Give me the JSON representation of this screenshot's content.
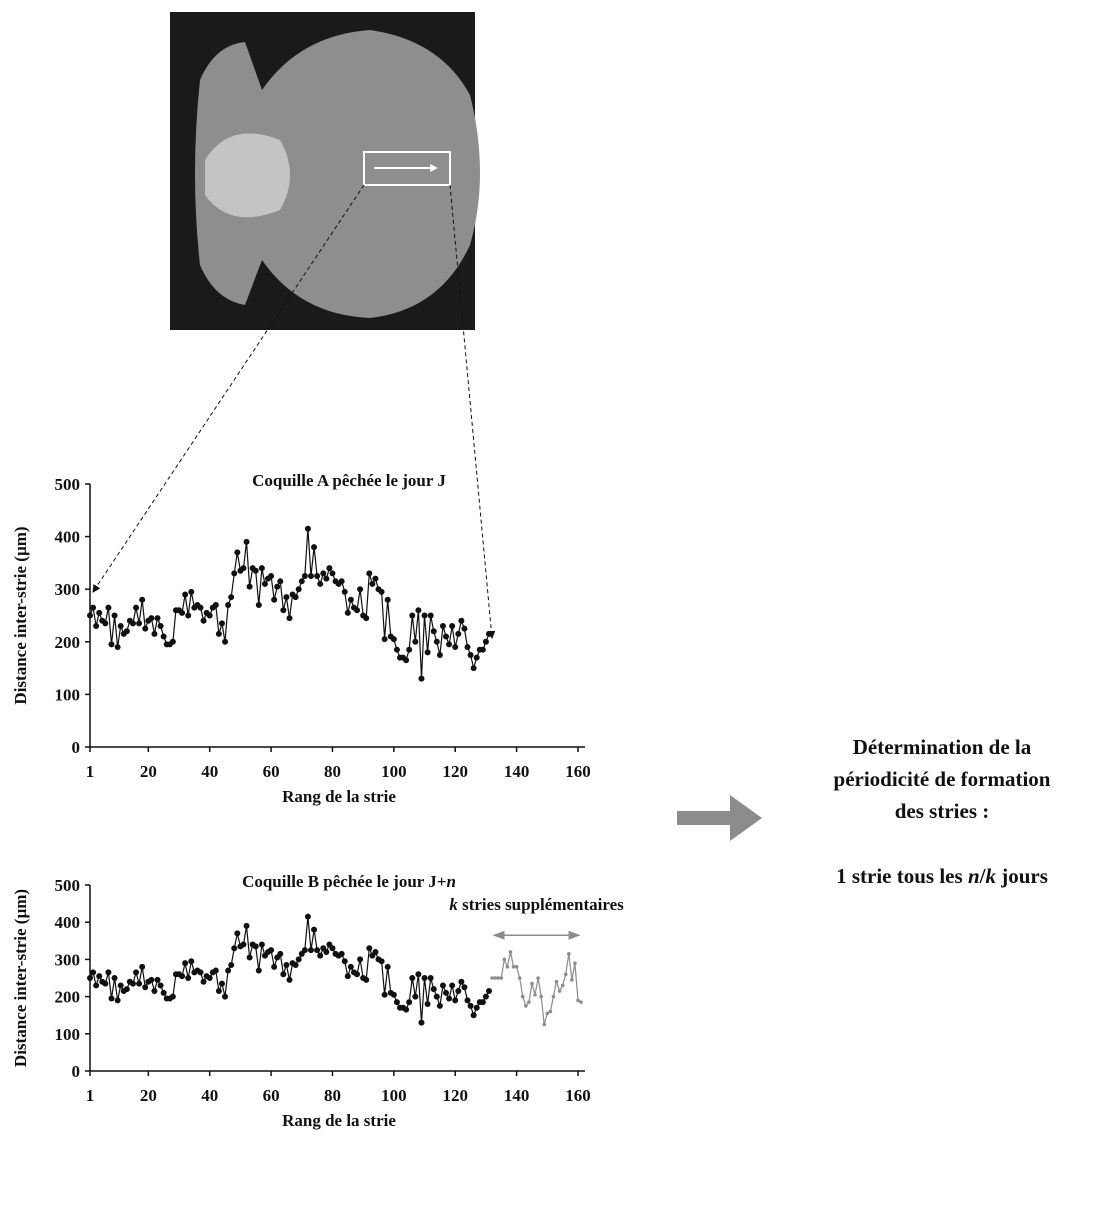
{
  "chart_data": [
    {
      "type": "line",
      "title": [
        "Coquille A pêchée le jour J"
      ],
      "x_label": "Rang de la strie",
      "y_label": "Distance inter-strie (µm)",
      "xlim": [
        1,
        160
      ],
      "xticks": [
        1,
        20,
        40,
        60,
        80,
        100,
        120,
        140,
        160
      ],
      "ylim": [
        0,
        500
      ],
      "yticks": [
        0,
        100,
        200,
        300,
        400,
        500
      ],
      "series": [
        {
          "color": "#111111",
          "x": [
            1,
            2,
            3,
            4,
            5,
            6,
            7,
            8,
            9,
            10,
            11,
            12,
            13,
            14,
            15,
            16,
            17,
            18,
            19,
            20,
            21,
            22,
            23,
            24,
            25,
            26,
            27,
            28,
            29,
            30,
            31,
            32,
            33,
            34,
            35,
            36,
            37,
            38,
            39,
            40,
            41,
            42,
            43,
            44,
            45,
            46,
            47,
            48,
            49,
            50,
            51,
            52,
            53,
            54,
            55,
            56,
            57,
            58,
            59,
            60,
            61,
            62,
            63,
            64,
            65,
            66,
            67,
            68,
            69,
            70,
            71,
            72,
            73,
            74,
            75,
            76,
            77,
            78,
            79,
            80,
            81,
            82,
            83,
            84,
            85,
            86,
            87,
            88,
            89,
            90,
            91,
            92,
            93,
            94,
            95,
            96,
            97,
            98,
            99,
            100,
            101,
            102,
            103,
            104,
            105,
            106,
            107,
            108,
            109,
            110,
            111,
            112,
            113,
            114,
            115,
            116,
            117,
            118,
            119,
            120,
            121,
            122,
            123,
            124,
            125,
            126,
            127,
            128,
            129,
            130,
            131
          ],
          "values": [
            250,
            265,
            230,
            255,
            240,
            235,
            265,
            195,
            250,
            190,
            230,
            215,
            220,
            240,
            235,
            265,
            235,
            280,
            225,
            240,
            245,
            215,
            245,
            230,
            210,
            195,
            195,
            200,
            260,
            260,
            255,
            290,
            250,
            295,
            265,
            270,
            265,
            240,
            255,
            250,
            265,
            270,
            215,
            235,
            200,
            270,
            285,
            330,
            370,
            335,
            340,
            390,
            305,
            340,
            335,
            270,
            340,
            310,
            320,
            325,
            280,
            305,
            315,
            260,
            285,
            245,
            290,
            285,
            300,
            315,
            325,
            415,
            325,
            380,
            325,
            310,
            330,
            320,
            340,
            330,
            315,
            310,
            315,
            295,
            255,
            280,
            265,
            260,
            300,
            250,
            245,
            330,
            310,
            320,
            300,
            295,
            205,
            280,
            210,
            205,
            185,
            170,
            170,
            165,
            185,
            250,
            200,
            260,
            130,
            250,
            180,
            250,
            220,
            200,
            175,
            230,
            210,
            195,
            230,
            190,
            215,
            240,
            225,
            190,
            175,
            150,
            170,
            185,
            185,
            200,
            215
          ]
        }
      ]
    },
    {
      "type": "line",
      "title": [
        "Coquille B pêchée le jour J+",
        "n"
      ],
      "x_label": "Rang de la strie",
      "y_label": "Distance inter-strie (µm)",
      "xlim": [
        1,
        160
      ],
      "xticks": [
        1,
        20,
        40,
        60,
        80,
        100,
        120,
        140,
        160
      ],
      "ylim": [
        0,
        500
      ],
      "yticks": [
        0,
        100,
        200,
        300,
        400,
        500
      ],
      "annotation": [
        "k",
        " stries supplémentaires"
      ],
      "series": [
        {
          "color": "#111111",
          "x": [
            1,
            2,
            3,
            4,
            5,
            6,
            7,
            8,
            9,
            10,
            11,
            12,
            13,
            14,
            15,
            16,
            17,
            18,
            19,
            20,
            21,
            22,
            23,
            24,
            25,
            26,
            27,
            28,
            29,
            30,
            31,
            32,
            33,
            34,
            35,
            36,
            37,
            38,
            39,
            40,
            41,
            42,
            43,
            44,
            45,
            46,
            47,
            48,
            49,
            50,
            51,
            52,
            53,
            54,
            55,
            56,
            57,
            58,
            59,
            60,
            61,
            62,
            63,
            64,
            65,
            66,
            67,
            68,
            69,
            70,
            71,
            72,
            73,
            74,
            75,
            76,
            77,
            78,
            79,
            80,
            81,
            82,
            83,
            84,
            85,
            86,
            87,
            88,
            89,
            90,
            91,
            92,
            93,
            94,
            95,
            96,
            97,
            98,
            99,
            100,
            101,
            102,
            103,
            104,
            105,
            106,
            107,
            108,
            109,
            110,
            111,
            112,
            113,
            114,
            115,
            116,
            117,
            118,
            119,
            120,
            121,
            122,
            123,
            124,
            125,
            126,
            127,
            128,
            129,
            130,
            131
          ],
          "values": [
            250,
            265,
            230,
            255,
            240,
            235,
            265,
            195,
            250,
            190,
            230,
            215,
            220,
            240,
            235,
            265,
            235,
            280,
            225,
            240,
            245,
            215,
            245,
            230,
            210,
            195,
            195,
            200,
            260,
            260,
            255,
            290,
            250,
            295,
            265,
            270,
            265,
            240,
            255,
            250,
            265,
            270,
            215,
            235,
            200,
            270,
            285,
            330,
            370,
            335,
            340,
            390,
            305,
            340,
            335,
            270,
            340,
            310,
            320,
            325,
            280,
            305,
            315,
            260,
            285,
            245,
            290,
            285,
            300,
            315,
            325,
            415,
            325,
            380,
            325,
            310,
            330,
            320,
            340,
            330,
            315,
            310,
            315,
            295,
            255,
            280,
            265,
            260,
            300,
            250,
            245,
            330,
            310,
            320,
            300,
            295,
            205,
            280,
            210,
            205,
            185,
            170,
            170,
            165,
            185,
            250,
            200,
            260,
            130,
            250,
            180,
            250,
            220,
            200,
            175,
            230,
            210,
            195,
            230,
            190,
            215,
            240,
            225,
            190,
            175,
            150,
            170,
            185,
            185,
            200,
            215
          ]
        },
        {
          "color": "#8c8c8c",
          "x": [
            132,
            133,
            134,
            135,
            136,
            137,
            138,
            139,
            140,
            141,
            142,
            143,
            144,
            145,
            146,
            147,
            148,
            149,
            150,
            151,
            152,
            153,
            154,
            155,
            156,
            157,
            158,
            159,
            160,
            161
          ],
          "values": [
            250,
            250,
            250,
            250,
            300,
            280,
            320,
            280,
            280,
            250,
            200,
            175,
            185,
            235,
            205,
            250,
            200,
            125,
            155,
            160,
            200,
            240,
            215,
            230,
            260,
            315,
            245,
            290,
            190,
            185
          ]
        }
      ]
    }
  ],
  "conclusion": {
    "lines": [
      "Détermination de la",
      "périodicité de formation",
      "des stries :"
    ],
    "formula": [
      "1 strie tous les ",
      "n",
      "/",
      "k",
      " jours"
    ]
  }
}
